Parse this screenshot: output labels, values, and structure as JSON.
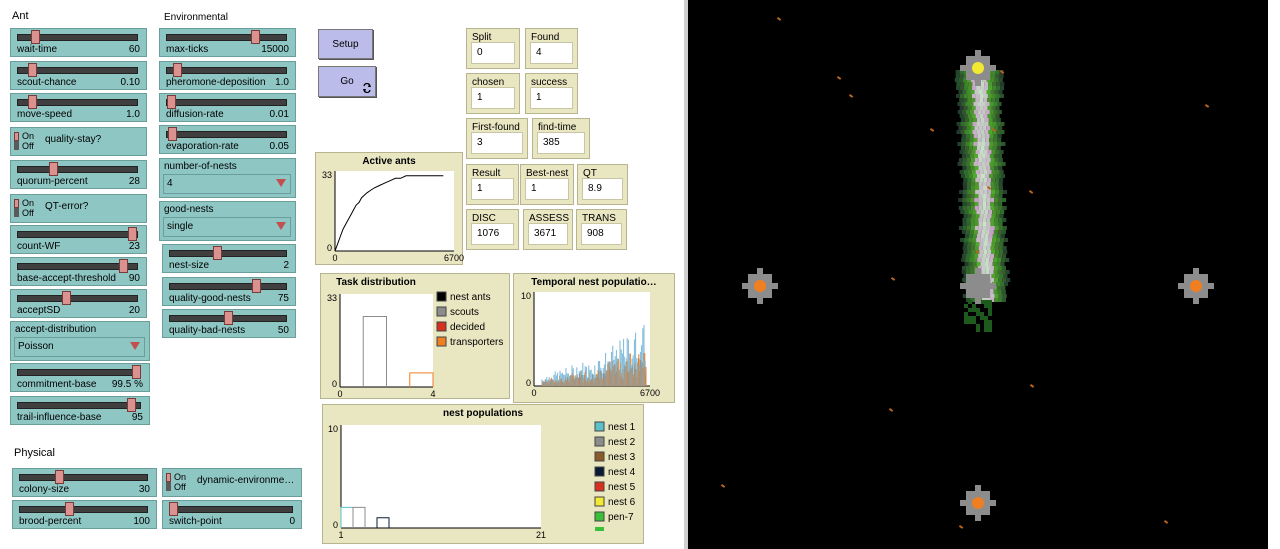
{
  "section_headers": {
    "ant": "Ant",
    "environmental": "Environmental",
    "physical": "Physical"
  },
  "ant_controls": {
    "wait_time": {
      "label": "wait-time",
      "value": "60",
      "level": 0.12
    },
    "scout_chance": {
      "label": "scout-chance",
      "value": "0.10",
      "level": 0.1
    },
    "move_speed": {
      "label": "move-speed",
      "value": "1.0",
      "level": 0.1
    },
    "quality_stay": {
      "label": "quality-stay?",
      "on": "On",
      "off": "Off"
    },
    "quorum_percent": {
      "label": "quorum-percent",
      "value": "28",
      "level": 0.28
    },
    "qt_error": {
      "label": "QT-error?",
      "on": "On",
      "off": "Off"
    },
    "count_wf": {
      "label": "count-WF",
      "value": "23",
      "level": 0.98
    },
    "base_accept_threshold": {
      "label": "base-accept-threshold",
      "value": "90",
      "level": 0.9
    },
    "accept_sd": {
      "label": "acceptSD",
      "value": "20",
      "level": 0.4
    },
    "accept_distribution": {
      "label": "accept-distribution",
      "value": "Poisson"
    },
    "commitment_base": {
      "label": "commitment-base",
      "value": "99.5 %",
      "level": 0.995
    },
    "trail_influence_base": {
      "label": "trail-influence-base",
      "value": "95",
      "level": 0.95
    }
  },
  "env_controls": {
    "max_ticks": {
      "label": "max-ticks",
      "value": "15000",
      "level": 0.75
    },
    "pheromone_deposition": {
      "label": "pheromone-deposition",
      "value": "1.0",
      "level": 0.06
    },
    "diffusion_rate": {
      "label": "diffusion-rate",
      "value": "0.01",
      "level": 0.01
    },
    "evaporation_rate": {
      "label": "evaporation-rate",
      "value": "0.05",
      "level": 0.02
    },
    "number_of_nests": {
      "label": "number-of-nests",
      "value": "4"
    },
    "good_nests": {
      "label": "good-nests",
      "value": "single"
    },
    "nest_size": {
      "label": "nest-size",
      "value": "2",
      "level": 0.4
    },
    "quality_good_nests": {
      "label": "quality-good-nests",
      "value": "75",
      "level": 0.75
    },
    "quality_bad_nests": {
      "label": "quality-bad-nests",
      "value": "50",
      "level": 0.5
    }
  },
  "physical_controls": {
    "colony_size": {
      "label": "colony-size",
      "value": "30",
      "level": 0.3
    },
    "brood_percent": {
      "label": "brood-percent",
      "value": "100",
      "level": 0.38
    },
    "dynamic_environment": {
      "label": "dynamic-environme…",
      "on": "On",
      "off": "Off"
    },
    "switch_point": {
      "label": "switch-point",
      "value": "0",
      "level": 0.0
    }
  },
  "buttons": {
    "setup": "Setup",
    "go": "Go",
    "go_icon": "forever-icon"
  },
  "monitors": {
    "split": {
      "label": "Split",
      "value": "0"
    },
    "found": {
      "label": "Found",
      "value": "4"
    },
    "chosen": {
      "label": "chosen",
      "value": "1"
    },
    "success": {
      "label": "success",
      "value": "1"
    },
    "first_found": {
      "label": "First-found",
      "value": "3"
    },
    "find_time": {
      "label": "find-time",
      "value": "385"
    },
    "result": {
      "label": "Result",
      "value": "1"
    },
    "best_nest": {
      "label": "Best-nest",
      "value": "1"
    },
    "qt": {
      "label": "QT",
      "value": "8.9"
    },
    "disc": {
      "label": "DISC",
      "value": "1076"
    },
    "assess": {
      "label": "ASSESS",
      "value": "3671"
    },
    "trans": {
      "label": "TRANS",
      "value": "908"
    }
  },
  "chart_data": [
    {
      "type": "line",
      "title": "Active ants",
      "xlim": [
        0,
        6700
      ],
      "ylim": [
        0,
        33
      ],
      "x_ticks": [
        "0",
        "6700"
      ],
      "y_ticks": [
        "0",
        "33"
      ],
      "series": [
        {
          "color": "#000000",
          "x": [
            0,
            150,
            300,
            450,
            600,
            750,
            900,
            1050,
            1200,
            1350,
            1500,
            1650,
            1800,
            2000,
            2200,
            2500,
            2800,
            3100,
            3400,
            3700,
            4000,
            4400,
            4800,
            5200,
            6100
          ],
          "y": [
            0,
            3,
            6,
            9,
            11,
            13,
            15,
            17,
            19,
            20,
            22,
            23,
            24,
            25,
            26,
            27,
            28,
            29,
            30,
            30,
            31,
            31,
            31,
            31,
            31
          ]
        }
      ]
    },
    {
      "type": "bar",
      "title": "Task distribution",
      "xlim": [
        0,
        4
      ],
      "ylim": [
        0,
        33
      ],
      "x_ticks": [
        "0",
        "4"
      ],
      "y_ticks": [
        "0",
        "33"
      ],
      "series": [
        {
          "name": "nest ants",
          "color": "#000000",
          "values": [
            0,
            0,
            0,
            0
          ]
        },
        {
          "name": "scouts",
          "color": "#8c8c8c",
          "values": [
            0,
            25,
            0,
            0
          ]
        },
        {
          "name": "decided",
          "color": "#d7301f",
          "values": [
            0,
            0,
            0,
            0
          ]
        },
        {
          "name": "transporters",
          "color": "#f07f21",
          "values": [
            0,
            0,
            0,
            5
          ]
        }
      ]
    },
    {
      "type": "bar",
      "title": "Temporal nest populatio…",
      "xlim": [
        0,
        6700
      ],
      "ylim": [
        0,
        10
      ],
      "x_ticks": [
        "0",
        "6700"
      ],
      "y_ticks": [
        "0",
        "10"
      ],
      "series": [
        {
          "name": "nest 1",
          "color": "#7ab8d9"
        },
        {
          "name": "nest 2",
          "color": "#8c8c8c"
        },
        {
          "name": "transporters",
          "color": "#f07f21"
        }
      ]
    },
    {
      "type": "bar",
      "title": "nest populations",
      "xlim": [
        1,
        21
      ],
      "ylim": [
        0,
        10
      ],
      "x_ticks": [
        "1",
        "21"
      ],
      "y_ticks": [
        "0",
        "10"
      ],
      "series": [
        {
          "name": "nest 1",
          "color": "#5bc0c7",
          "values": [
            2,
            0,
            0,
            0
          ]
        },
        {
          "name": "nest 2",
          "color": "#8c8c8c",
          "values": [
            0,
            2,
            0,
            0
          ]
        },
        {
          "name": "nest 3",
          "color": "#8a5a2b",
          "values": [
            0,
            0,
            0,
            0
          ]
        },
        {
          "name": "nest 4",
          "color": "#0b1a33",
          "values": [
            0,
            0,
            0,
            1
          ]
        },
        {
          "name": "nest 5",
          "color": "#d7301f",
          "values": [
            0,
            0,
            0,
            0
          ]
        },
        {
          "name": "nest 6",
          "color": "#f2e933",
          "values": [
            0,
            0,
            0,
            0
          ]
        },
        {
          "name": "pen-7",
          "color": "#3bbf3b",
          "values": [
            0,
            0,
            0,
            0
          ]
        }
      ]
    }
  ]
}
